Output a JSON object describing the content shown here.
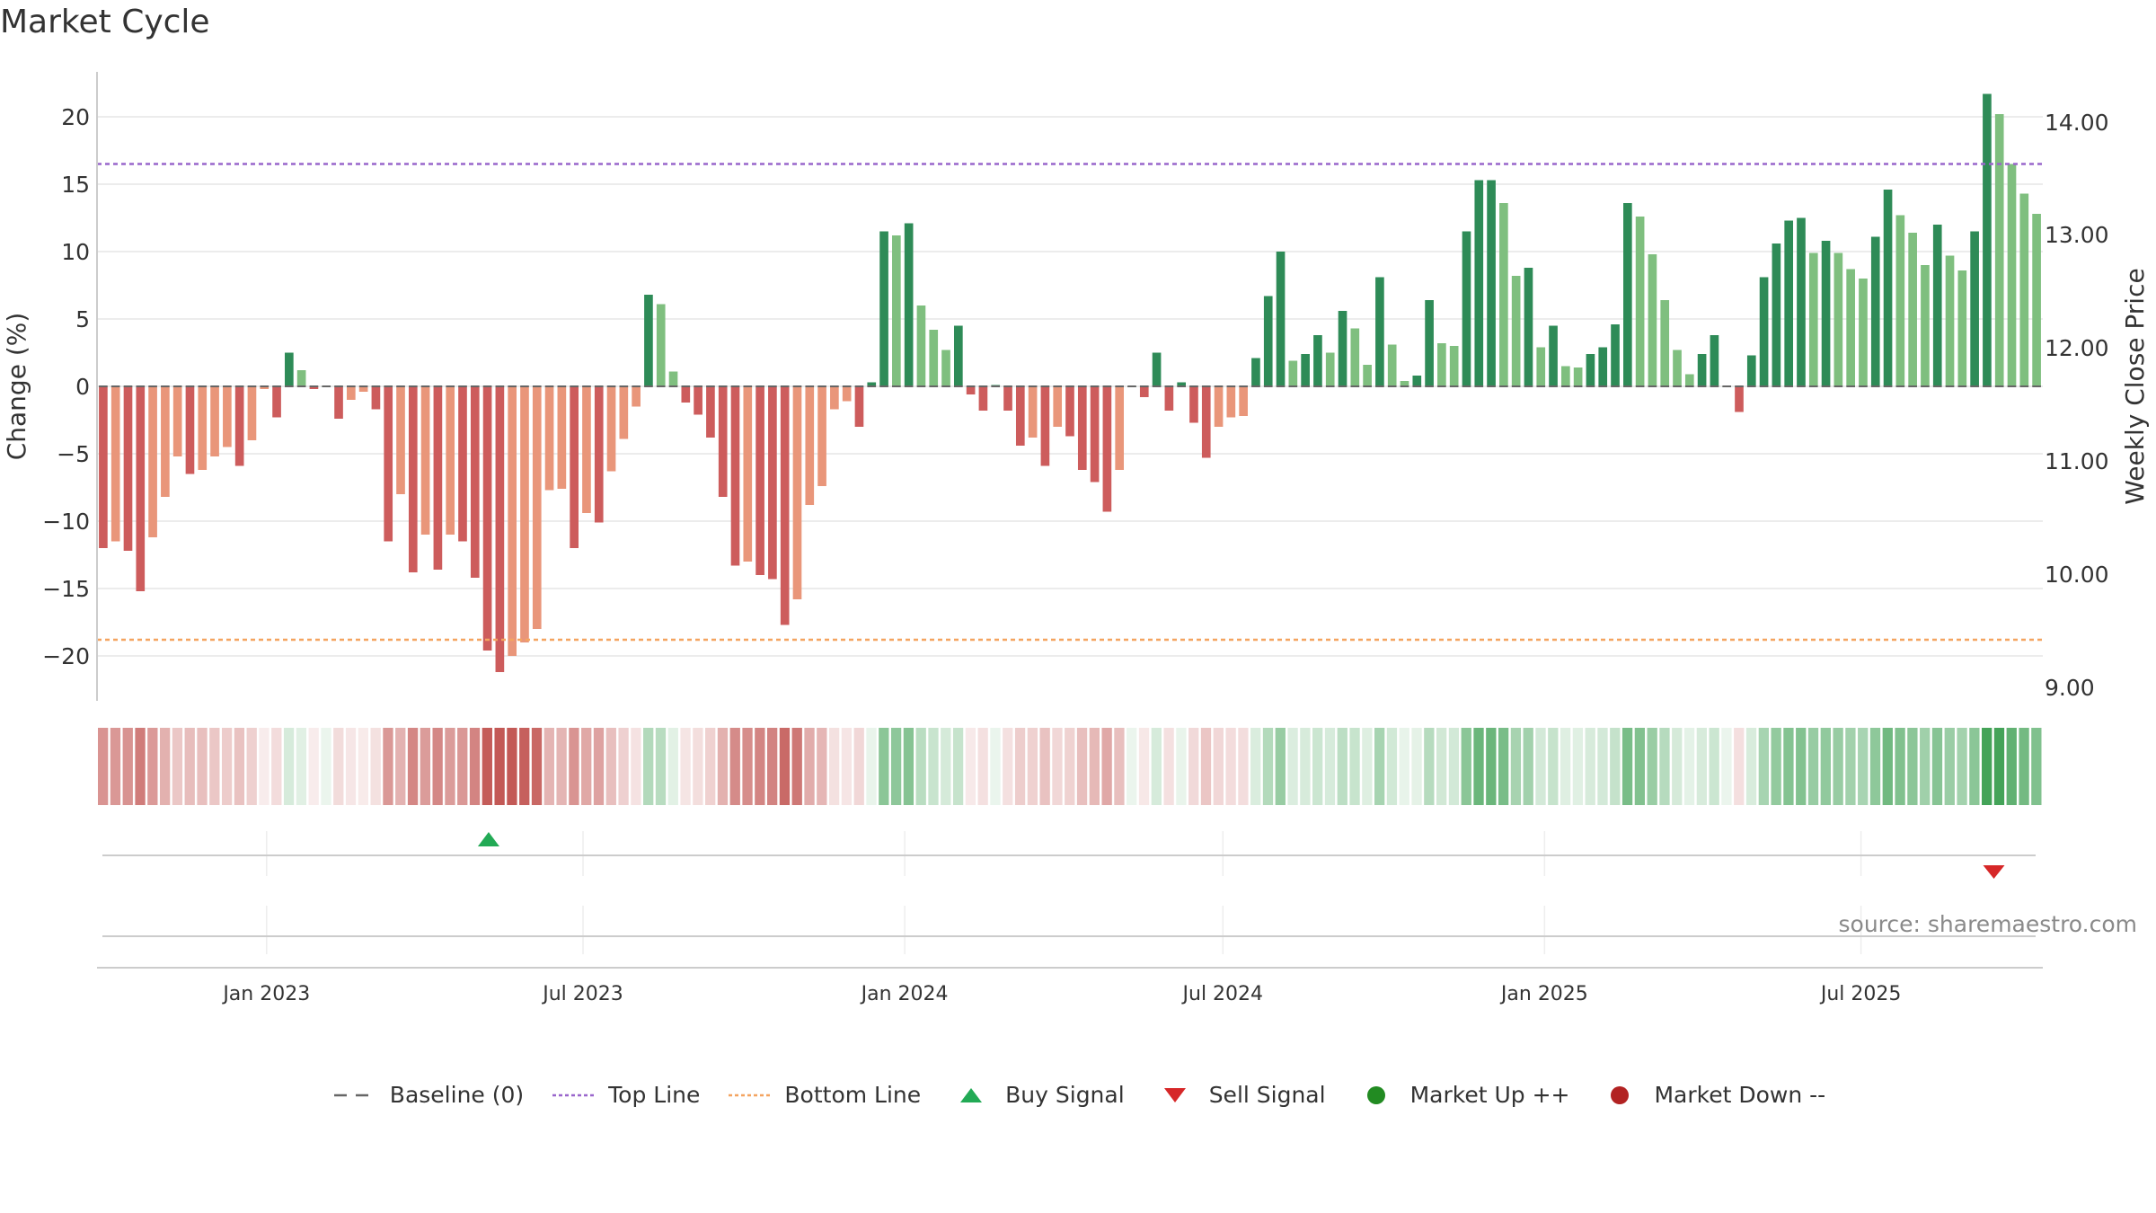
{
  "title": "Market Cycle",
  "source": "source: sharemaestro.com",
  "colors": {
    "up_dark": "#2e8b57",
    "up_light": "#7fbf7f",
    "down_dark": "#cd5c5c",
    "down_light": "#e9967a",
    "top_line": "#9966cc",
    "bottom_line": "#f4a460",
    "baseline": "#666666",
    "buy": "#22aa55",
    "sell": "#d62728",
    "market_up": "#228b22",
    "market_down": "#b22222"
  },
  "legend": [
    {
      "label": "Baseline (0)",
      "marker": "dash",
      "color": "#666666"
    },
    {
      "label": "Top Line",
      "marker": "dotted",
      "color": "#9966cc"
    },
    {
      "label": "Bottom Line",
      "marker": "dotted",
      "color": "#f4a460"
    },
    {
      "label": "Buy Signal",
      "marker": "triangle-up",
      "color": "#22aa55"
    },
    {
      "label": "Sell Signal",
      "marker": "triangle-down",
      "color": "#d62728"
    },
    {
      "label": "Market Up ++",
      "marker": "circle",
      "color": "#228b22"
    },
    {
      "label": "Market Down --",
      "marker": "circle",
      "color": "#b22222"
    }
  ],
  "chart_data": {
    "type": "bar",
    "title": "Market Cycle",
    "ylabel": "Change (%)",
    "ylabel_right": "Weekly Close Price",
    "ylim": [
      -23.5,
      23.5
    ],
    "y_ticks": [
      20,
      15,
      10,
      5,
      0,
      -5,
      -10,
      -15,
      -20
    ],
    "y_tick_labels": [
      "20",
      "15",
      "10",
      "5",
      "0",
      "−5",
      "−10",
      "−15",
      "−20"
    ],
    "y2_ticks": [
      "14.00",
      "13.00",
      "12.00",
      "11.00",
      "10.00",
      "9.00"
    ],
    "top_line": 16.5,
    "bottom_line": -18.8,
    "baseline": 0,
    "x_start": "2022-09-26",
    "x_end": "2025-10-13",
    "x_ticks": [
      {
        "date": "2023-01-01",
        "label": "Jan 2023"
      },
      {
        "date": "2023-07-01",
        "label": "Jul 2023"
      },
      {
        "date": "2024-01-01",
        "label": "Jan 2024"
      },
      {
        "date": "2024-07-01",
        "label": "Jul 2024"
      },
      {
        "date": "2025-01-01",
        "label": "Jan 2025"
      },
      {
        "date": "2025-07-01",
        "label": "Jul 2025"
      }
    ],
    "values": [
      -12,
      -11.5,
      -12.2,
      -15.2,
      -11.2,
      -8.2,
      -5.2,
      -6.5,
      -6.2,
      -5.2,
      -4.5,
      -5.9,
      -4,
      -0.2,
      -2.3,
      2.5,
      1.2,
      -0.2,
      0,
      -2.4,
      -1,
      -0.4,
      -1.7,
      -11.5,
      -8,
      -13.8,
      -11,
      -13.6,
      -11,
      -11.5,
      -14.2,
      -19.6,
      -21.2,
      -20,
      -19,
      -18,
      -7.7,
      -7.6,
      -12,
      -9.4,
      -10.1,
      -6.3,
      -3.9,
      -1.5,
      6.8,
      6.1,
      1.1,
      -1.2,
      -2.1,
      -3.8,
      -8.2,
      -13.3,
      -13,
      -14,
      -14.3,
      -17.7,
      -15.8,
      -8.8,
      -7.4,
      -1.7,
      -1.1,
      -3,
      0.3,
      11.5,
      11.2,
      12.1,
      6,
      4.2,
      2.7,
      4.5,
      -0.6,
      -1.8,
      0.1,
      -1.8,
      -4.4,
      -3.8,
      -5.9,
      -3,
      -3.7,
      -6.2,
      -7.1,
      -9.3,
      -6.2,
      0,
      -0.8,
      2.5,
      -1.8,
      0.3,
      -2.7,
      -5.3,
      -3,
      -2.3,
      -2.2,
      2.1,
      6.7,
      10,
      1.9,
      2.4,
      3.8,
      2.5,
      5.6,
      4.3,
      1.6,
      8.1,
      3.1,
      0.4,
      0.8,
      6.4,
      3.2,
      3,
      11.5,
      15.3,
      15.3,
      13.6,
      8.2,
      8.8,
      2.9,
      4.5,
      1.5,
      1.4,
      2.4,
      2.9,
      4.6,
      13.6,
      12.6,
      9.8,
      6.4,
      2.7,
      0.9,
      2.4,
      3.8,
      0,
      -1.9,
      2.3,
      8.1,
      10.6,
      12.3,
      12.5,
      9.9,
      10.8,
      9.9,
      8.7,
      8,
      11.1,
      14.6,
      12.7,
      11.4,
      9,
      12,
      9.7,
      8.6,
      11.5,
      21.7,
      20.2,
      16.5,
      14.3,
      12.8
    ],
    "buy_signals": [
      {
        "date": "2023-05-08"
      }
    ],
    "sell_signals": [
      {
        "date": "2025-09-15"
      }
    ],
    "heat_strip": "per-week intensity of the change shown as a coloured band below the bars"
  }
}
